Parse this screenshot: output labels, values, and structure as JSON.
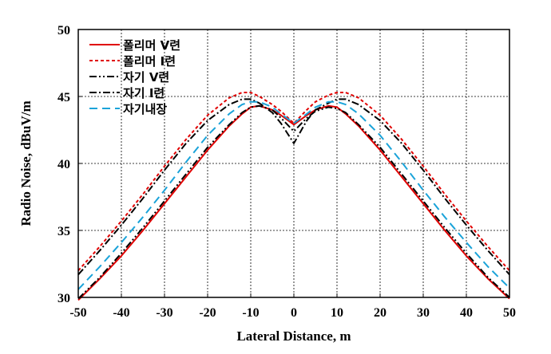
{
  "chart_data": {
    "type": "line",
    "title": "",
    "xlabel": "Lateral Distance, m",
    "ylabel": "Radio Noise, dBuV/m",
    "xlim": [
      -50,
      50
    ],
    "ylim": [
      30,
      50
    ],
    "x_ticks": [
      "-50",
      "-40",
      "-30",
      "-20",
      "-10",
      "0",
      "10",
      "20",
      "30",
      "40",
      "50"
    ],
    "y_ticks": [
      "30",
      "35",
      "40",
      "45",
      "50"
    ],
    "grid": "dashed",
    "legend_position": "top-left",
    "series": [
      {
        "name": "폴리머 V련",
        "color": "#e00000",
        "dash": "solid",
        "points": [
          [
            -50,
            29.8
          ],
          [
            -45,
            31.4
          ],
          [
            -40,
            33.1
          ],
          [
            -35,
            35.0
          ],
          [
            -30,
            37.0
          ],
          [
            -25,
            39.0
          ],
          [
            -20,
            41.0
          ],
          [
            -15,
            42.8
          ],
          [
            -12,
            43.7
          ],
          [
            -10,
            44.2
          ],
          [
            -8,
            44.3
          ],
          [
            -5,
            44.0
          ],
          [
            -3,
            43.6
          ],
          [
            0,
            42.9
          ],
          [
            3,
            43.6
          ],
          [
            5,
            44.0
          ],
          [
            8,
            44.3
          ],
          [
            10,
            44.2
          ],
          [
            12,
            43.7
          ],
          [
            15,
            42.8
          ],
          [
            20,
            41.0
          ],
          [
            25,
            39.0
          ],
          [
            30,
            37.0
          ],
          [
            35,
            35.0
          ],
          [
            40,
            33.1
          ],
          [
            45,
            31.4
          ],
          [
            50,
            29.9
          ]
        ]
      },
      {
        "name": "폴리머 I련",
        "color": "#e00000",
        "dash": "4,3",
        "points": [
          [
            -50,
            32.0
          ],
          [
            -45,
            33.8
          ],
          [
            -40,
            35.7
          ],
          [
            -35,
            37.7
          ],
          [
            -30,
            39.8
          ],
          [
            -25,
            41.8
          ],
          [
            -20,
            43.6
          ],
          [
            -15,
            44.9
          ],
          [
            -12,
            45.3
          ],
          [
            -10,
            45.3
          ],
          [
            -8,
            45.0
          ],
          [
            -5,
            44.4
          ],
          [
            -3,
            43.9
          ],
          [
            0,
            43.0
          ],
          [
            3,
            44.0
          ],
          [
            5,
            44.6
          ],
          [
            8,
            45.1
          ],
          [
            10,
            45.3
          ],
          [
            12,
            45.3
          ],
          [
            15,
            44.9
          ],
          [
            20,
            43.6
          ],
          [
            25,
            41.8
          ],
          [
            30,
            39.8
          ],
          [
            35,
            37.7
          ],
          [
            40,
            35.7
          ],
          [
            45,
            33.8
          ],
          [
            50,
            32.0
          ]
        ]
      },
      {
        "name": "자기 V련",
        "color": "#000000",
        "dash": "9,3,2,3,2,3",
        "points": [
          [
            -50,
            29.9
          ],
          [
            -45,
            31.5
          ],
          [
            -40,
            33.3
          ],
          [
            -35,
            35.2
          ],
          [
            -30,
            37.2
          ],
          [
            -25,
            39.2
          ],
          [
            -20,
            41.2
          ],
          [
            -15,
            42.9
          ],
          [
            -12,
            43.8
          ],
          [
            -10,
            44.2
          ],
          [
            -8,
            44.3
          ],
          [
            -5,
            44.0
          ],
          [
            -3,
            43.4
          ],
          [
            0,
            42.4
          ],
          [
            3,
            43.4
          ],
          [
            5,
            43.9
          ],
          [
            8,
            44.2
          ],
          [
            10,
            44.1
          ],
          [
            12,
            43.8
          ],
          [
            15,
            42.9
          ],
          [
            20,
            41.2
          ],
          [
            25,
            39.2
          ],
          [
            30,
            37.2
          ],
          [
            35,
            35.2
          ],
          [
            40,
            33.3
          ],
          [
            45,
            31.5
          ],
          [
            50,
            30.0
          ]
        ]
      },
      {
        "name": "자기 I련",
        "color": "#000000",
        "dash": "9,3,2,3",
        "points": [
          [
            -50,
            31.7
          ],
          [
            -45,
            33.5
          ],
          [
            -40,
            35.4
          ],
          [
            -35,
            37.4
          ],
          [
            -30,
            39.5
          ],
          [
            -25,
            41.5
          ],
          [
            -20,
            43.2
          ],
          [
            -15,
            44.4
          ],
          [
            -12,
            44.8
          ],
          [
            -10,
            44.8
          ],
          [
            -8,
            44.5
          ],
          [
            -5,
            43.8
          ],
          [
            -3,
            43.0
          ],
          [
            0,
            41.5
          ],
          [
            3,
            43.2
          ],
          [
            5,
            44.0
          ],
          [
            8,
            44.5
          ],
          [
            10,
            44.8
          ],
          [
            12,
            44.8
          ],
          [
            15,
            44.4
          ],
          [
            20,
            43.2
          ],
          [
            25,
            41.5
          ],
          [
            30,
            39.5
          ],
          [
            35,
            37.4
          ],
          [
            40,
            35.4
          ],
          [
            45,
            33.5
          ],
          [
            50,
            31.7
          ]
        ]
      },
      {
        "name": "자기내장",
        "color": "#1aa3d9",
        "dash": "10,6",
        "points": [
          [
            -50,
            30.6
          ],
          [
            -45,
            32.3
          ],
          [
            -40,
            34.1
          ],
          [
            -35,
            36.0
          ],
          [
            -30,
            38.0
          ],
          [
            -25,
            40.1
          ],
          [
            -20,
            42.1
          ],
          [
            -15,
            43.7
          ],
          [
            -12,
            44.4
          ],
          [
            -10,
            44.6
          ],
          [
            -8,
            44.6
          ],
          [
            -5,
            44.2
          ],
          [
            -3,
            43.7
          ],
          [
            0,
            43.0
          ],
          [
            3,
            43.7
          ],
          [
            5,
            44.2
          ],
          [
            8,
            44.6
          ],
          [
            10,
            44.6
          ],
          [
            12,
            44.4
          ],
          [
            15,
            43.7
          ],
          [
            20,
            42.1
          ],
          [
            25,
            40.1
          ],
          [
            30,
            38.0
          ],
          [
            35,
            36.0
          ],
          [
            40,
            34.1
          ],
          [
            45,
            32.3
          ],
          [
            50,
            30.7
          ]
        ]
      }
    ]
  }
}
